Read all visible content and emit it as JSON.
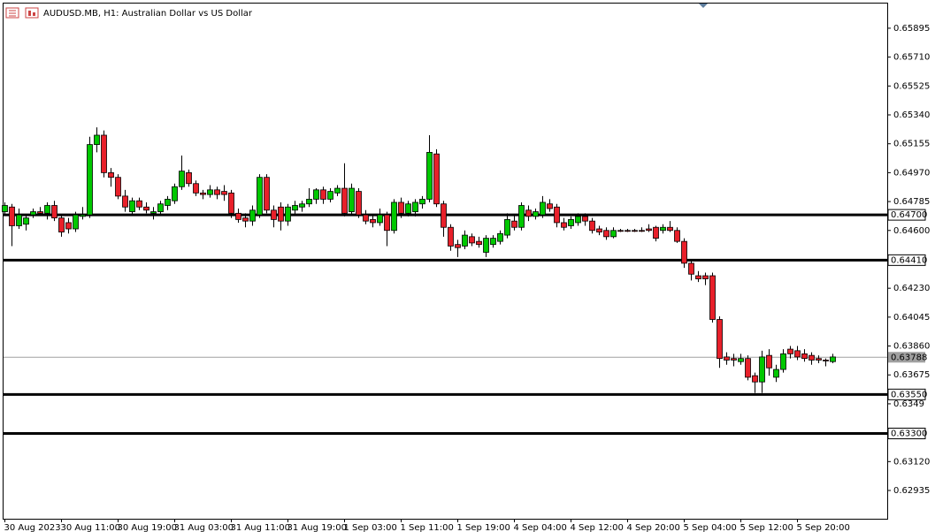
{
  "chart_data": {
    "type": "candlestick",
    "title": "AUDUSD.MB, H1:  Australian Dollar vs US Dollar",
    "up_color": "#00c800",
    "down_color": "#e8202a",
    "ylim": [
      0.62754,
      0.66053
    ],
    "yticks": [
      0.65895,
      {
        "value": 0.6571,
        "label": "0.65710"
      },
      0.65525,
      {
        "value": 0.6534,
        "label": "0.65340"
      },
      0.65155,
      {
        "value": 0.6497,
        "label": "0.64970"
      },
      0.64785,
      {
        "value": 0.646,
        "label": "0.64600"
      },
      {
        "value": 0.6423,
        "label": "0.64230"
      },
      0.64045,
      {
        "value": 0.6386,
        "label": "0.63860"
      },
      0.63675,
      0.6349,
      {
        "value": 0.6312,
        "label": "0.63120"
      },
      0.62935
    ],
    "levels": [
      {
        "value": 0.647,
        "label": "0.64700"
      },
      {
        "value": 0.6441,
        "label": "0.64410"
      },
      {
        "value": 0.6355,
        "label": "0.63550"
      },
      {
        "value": 0.633,
        "label": "0.63300"
      }
    ],
    "current_price": {
      "value": 0.63788,
      "label": "0.63788"
    },
    "categories": [
      "30 Aug 2023",
      null,
      null,
      null,
      null,
      null,
      null,
      null,
      "30 Aug 11:00",
      null,
      null,
      null,
      null,
      null,
      null,
      null,
      "30 Aug 19:00",
      null,
      null,
      null,
      null,
      null,
      null,
      null,
      "31 Aug 03:00",
      null,
      null,
      null,
      null,
      null,
      null,
      null,
      "31 Aug 11:00",
      null,
      null,
      null,
      null,
      null,
      null,
      null,
      "31 Aug 19:00",
      null,
      null,
      null,
      null,
      null,
      null,
      null,
      "1 Sep 03:00",
      null,
      null,
      null,
      null,
      null,
      null,
      null,
      "1 Sep 11:00",
      null,
      null,
      null,
      null,
      null,
      null,
      null,
      "1 Sep 19:00",
      null,
      null,
      null,
      null,
      null,
      null,
      null,
      "4 Sep 04:00",
      null,
      null,
      null,
      null,
      null,
      null,
      null,
      "4 Sep 12:00",
      null,
      null,
      null,
      null,
      null,
      null,
      null,
      "4 Sep 20:00",
      null,
      null,
      null,
      null,
      null,
      null,
      null,
      "5 Sep 04:00",
      null,
      null,
      null,
      null,
      null,
      null,
      null,
      "5 Sep 12:00",
      null,
      null,
      null,
      null,
      null,
      null,
      null,
      "5 Sep 20:00",
      null,
      null,
      null,
      null,
      null
    ],
    "open": [
      0.6472,
      0.6475,
      0.6463,
      0.6464,
      0.647,
      0.6472,
      0.6471,
      0.6476,
      0.6468,
      0.6465,
      0.6461,
      0.6469,
      0.647,
      0.6515,
      0.6521,
      0.6497,
      0.6494,
      0.6482,
      0.6472,
      0.6479,
      0.6475,
      0.6471,
      0.6472,
      0.6476,
      0.6479,
      0.6488,
      0.6497,
      0.649,
      0.6484,
      0.6483,
      0.6486,
      0.6485,
      0.6484,
      0.6471,
      0.6468,
      0.6466,
      0.647,
      0.6494,
      0.6473,
      0.6475,
      0.6466,
      0.6473,
      0.6475,
      0.6477,
      0.648,
      0.6486,
      0.648,
      0.6484,
      0.6487,
      0.6472,
      0.6485,
      0.647,
      0.6467,
      0.6465,
      0.647,
      0.646,
      0.6478,
      0.6471,
      0.6472,
      0.6477,
      0.648,
      0.6509,
      0.6477,
      0.6462,
      0.6451,
      0.645,
      0.6456,
      0.6453,
      0.6446,
      0.6451,
      0.6453,
      0.6457,
      0.6466,
      0.6462,
      0.6473,
      0.6469,
      0.647,
      0.6477,
      0.6475,
      0.6465,
      0.6463,
      0.6465,
      0.6469,
      0.6466,
      0.6461,
      0.646,
      0.6456,
      0.646,
      0.646,
      0.646,
      0.646,
      0.6461,
      0.6462,
      0.646,
      0.6462,
      0.646,
      0.6453,
      0.6439,
      0.6431,
      0.6431,
      0.6431,
      0.6403,
      0.6379,
      0.6378,
      0.6376,
      0.6378,
      0.6367,
      0.6363,
      0.638,
      0.6366,
      0.6371,
      0.6384,
      0.6383,
      0.6381,
      0.638,
      0.6378,
      0.6377,
      0.6376
    ],
    "high": [
      0.6478,
      0.6477,
      0.6474,
      0.647,
      0.6474,
      0.6475,
      0.6478,
      0.6479,
      0.647,
      0.6468,
      0.6472,
      0.6475,
      0.652,
      0.6526,
      0.6524,
      0.65,
      0.6496,
      0.6486,
      0.6481,
      0.6481,
      0.6478,
      0.6475,
      0.6479,
      0.6482,
      0.649,
      0.6508,
      0.6499,
      0.6492,
      0.6486,
      0.6489,
      0.6488,
      0.6489,
      0.6486,
      0.6474,
      0.6471,
      0.6476,
      0.6496,
      0.6496,
      0.6476,
      0.6478,
      0.6477,
      0.6479,
      0.6479,
      0.6487,
      0.6487,
      0.6488,
      0.6487,
      0.6489,
      0.6503,
      0.649,
      0.6487,
      0.6473,
      0.647,
      0.6474,
      0.6472,
      0.648,
      0.6481,
      0.6479,
      0.648,
      0.6482,
      0.6521,
      0.6512,
      0.6479,
      0.6464,
      0.6454,
      0.646,
      0.6458,
      0.6456,
      0.6457,
      0.6457,
      0.646,
      0.6471,
      0.647,
      0.6478,
      0.6476,
      0.6474,
      0.6482,
      0.648,
      0.6477,
      0.6468,
      0.6469,
      0.6471,
      0.6471,
      0.6468,
      0.6463,
      0.6462,
      0.6462,
      0.6461,
      0.6461,
      0.6461,
      0.6462,
      0.6464,
      0.6463,
      0.6464,
      0.6466,
      0.6462,
      0.6455,
      0.6441,
      0.6434,
      0.6433,
      0.6433,
      0.6405,
      0.6382,
      0.6381,
      0.6381,
      0.638,
      0.6369,
      0.6383,
      0.6384,
      0.6374,
      0.6384,
      0.6386,
      0.6386,
      0.6384,
      0.6382,
      0.638,
      0.6378,
      0.6381
    ],
    "low": [
      0.647,
      0.645,
      0.6461,
      0.646,
      0.6468,
      0.647,
      0.6467,
      0.6466,
      0.6456,
      0.6458,
      0.6459,
      0.6467,
      0.6468,
      0.651,
      0.6494,
      0.6488,
      0.648,
      0.6472,
      0.647,
      0.6473,
      0.6471,
      0.6467,
      0.647,
      0.6473,
      0.6477,
      0.6486,
      0.6488,
      0.6482,
      0.648,
      0.6481,
      0.648,
      0.6479,
      0.6468,
      0.6465,
      0.6462,
      0.6463,
      0.6468,
      0.6471,
      0.6462,
      0.646,
      0.6463,
      0.647,
      0.6472,
      0.6475,
      0.6477,
      0.6477,
      0.6478,
      0.6482,
      0.6469,
      0.647,
      0.6468,
      0.6464,
      0.6462,
      0.6463,
      0.645,
      0.6458,
      0.6468,
      0.6469,
      0.6469,
      0.6474,
      0.6478,
      0.6475,
      0.6456,
      0.6447,
      0.6443,
      0.6448,
      0.645,
      0.6449,
      0.6443,
      0.6449,
      0.6451,
      0.6455,
      0.646,
      0.646,
      0.6466,
      0.6467,
      0.6468,
      0.6472,
      0.6462,
      0.646,
      0.6461,
      0.6463,
      0.6463,
      0.6458,
      0.6457,
      0.6454,
      0.6455,
      0.6459,
      0.6459,
      0.6459,
      0.6459,
      0.6459,
      0.6453,
      0.6458,
      0.6459,
      0.6452,
      0.6436,
      0.6428,
      0.6427,
      0.6425,
      0.6401,
      0.6372,
      0.6374,
      0.6373,
      0.6374,
      0.6364,
      0.6356,
      0.6356,
      0.6367,
      0.6363,
      0.6369,
      0.6378,
      0.6377,
      0.6376,
      0.6374,
      0.6375,
      0.6373,
      0.6375
    ],
    "close": [
      0.6476,
      0.6463,
      0.647,
      0.6468,
      0.6472,
      0.6471,
      0.6476,
      0.6468,
      0.6459,
      0.6461,
      0.647,
      0.647,
      0.6515,
      0.6521,
      0.6497,
      0.6494,
      0.6482,
      0.6475,
      0.6479,
      0.6475,
      0.6473,
      0.6472,
      0.6477,
      0.648,
      0.6488,
      0.6498,
      0.649,
      0.6484,
      0.6483,
      0.6486,
      0.6483,
      0.6483,
      0.6471,
      0.6467,
      0.6466,
      0.6473,
      0.6494,
      0.6473,
      0.6467,
      0.6466,
      0.6475,
      0.6476,
      0.6477,
      0.648,
      0.6486,
      0.648,
      0.6485,
      0.6487,
      0.6471,
      0.6487,
      0.647,
      0.6466,
      0.6465,
      0.647,
      0.646,
      0.6478,
      0.6471,
      0.6477,
      0.6478,
      0.648,
      0.651,
      0.6477,
      0.6462,
      0.645,
      0.6449,
      0.6457,
      0.6452,
      0.6451,
      0.6455,
      0.6455,
      0.6458,
      0.6467,
      0.6462,
      0.6476,
      0.6469,
      0.6472,
      0.6478,
      0.6474,
      0.6465,
      0.6462,
      0.6467,
      0.6469,
      0.6466,
      0.646,
      0.6459,
      0.6456,
      0.646,
      0.646,
      0.646,
      0.646,
      0.646,
      0.646,
      0.6455,
      0.6462,
      0.646,
      0.6453,
      0.6439,
      0.6432,
      0.6429,
      0.6429,
      0.6403,
      0.6378,
      0.6377,
      0.6377,
      0.6378,
      0.6366,
      0.6363,
      0.6379,
      0.6372,
      0.6371,
      0.6381,
      0.6381,
      0.6379,
      0.6378,
      0.6377,
      0.6377,
      0.6377,
      0.6379
    ]
  }
}
